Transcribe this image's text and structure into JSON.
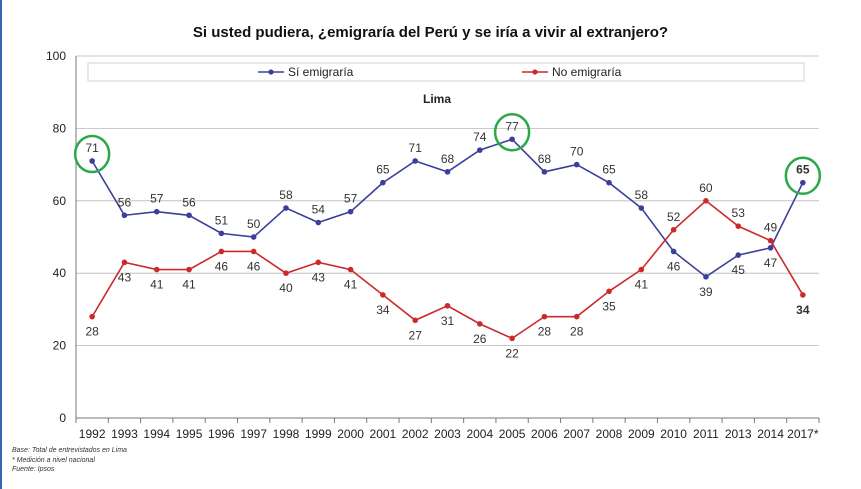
{
  "chart_data": {
    "type": "line",
    "title": "Si usted pudiera, ¿emigraría del Perú y se iría a vivir al extranjero?",
    "subtitle": "Lima",
    "categories": [
      "1992",
      "1993",
      "1994",
      "1995",
      "1996",
      "1997",
      "1998",
      "1999",
      "2000",
      "2001",
      "2002",
      "2003",
      "2004",
      "2005",
      "2006",
      "2007",
      "2008",
      "2009",
      "2010",
      "2011",
      "2013",
      "2014",
      "2017*"
    ],
    "series": [
      {
        "name": "Sí emigraría",
        "color": "#3b3f99",
        "values": [
          71,
          56,
          57,
          56,
          51,
          50,
          58,
          54,
          57,
          65,
          71,
          68,
          74,
          77,
          68,
          70,
          65,
          58,
          46,
          39,
          45,
          47,
          65
        ]
      },
      {
        "name": "No emigraría",
        "color": "#cc2a2a",
        "values": [
          28,
          43,
          41,
          41,
          46,
          46,
          40,
          43,
          41,
          34,
          27,
          31,
          26,
          22,
          28,
          28,
          35,
          41,
          52,
          60,
          53,
          49,
          34
        ]
      }
    ],
    "ylim": [
      0,
      100
    ],
    "yticks": [
      0,
      20,
      40,
      60,
      80,
      100
    ],
    "grid": true,
    "legend_position": "top",
    "highlight_circle_color": "#2aa84a",
    "highlighted_points": [
      "1992",
      "2005",
      "2017*"
    ]
  },
  "notes": {
    "base": "Base: Total de entrevistados en Lima",
    "nacional": "* Medición a nivel nacional",
    "fuente": "Fuente: Ipsos"
  }
}
